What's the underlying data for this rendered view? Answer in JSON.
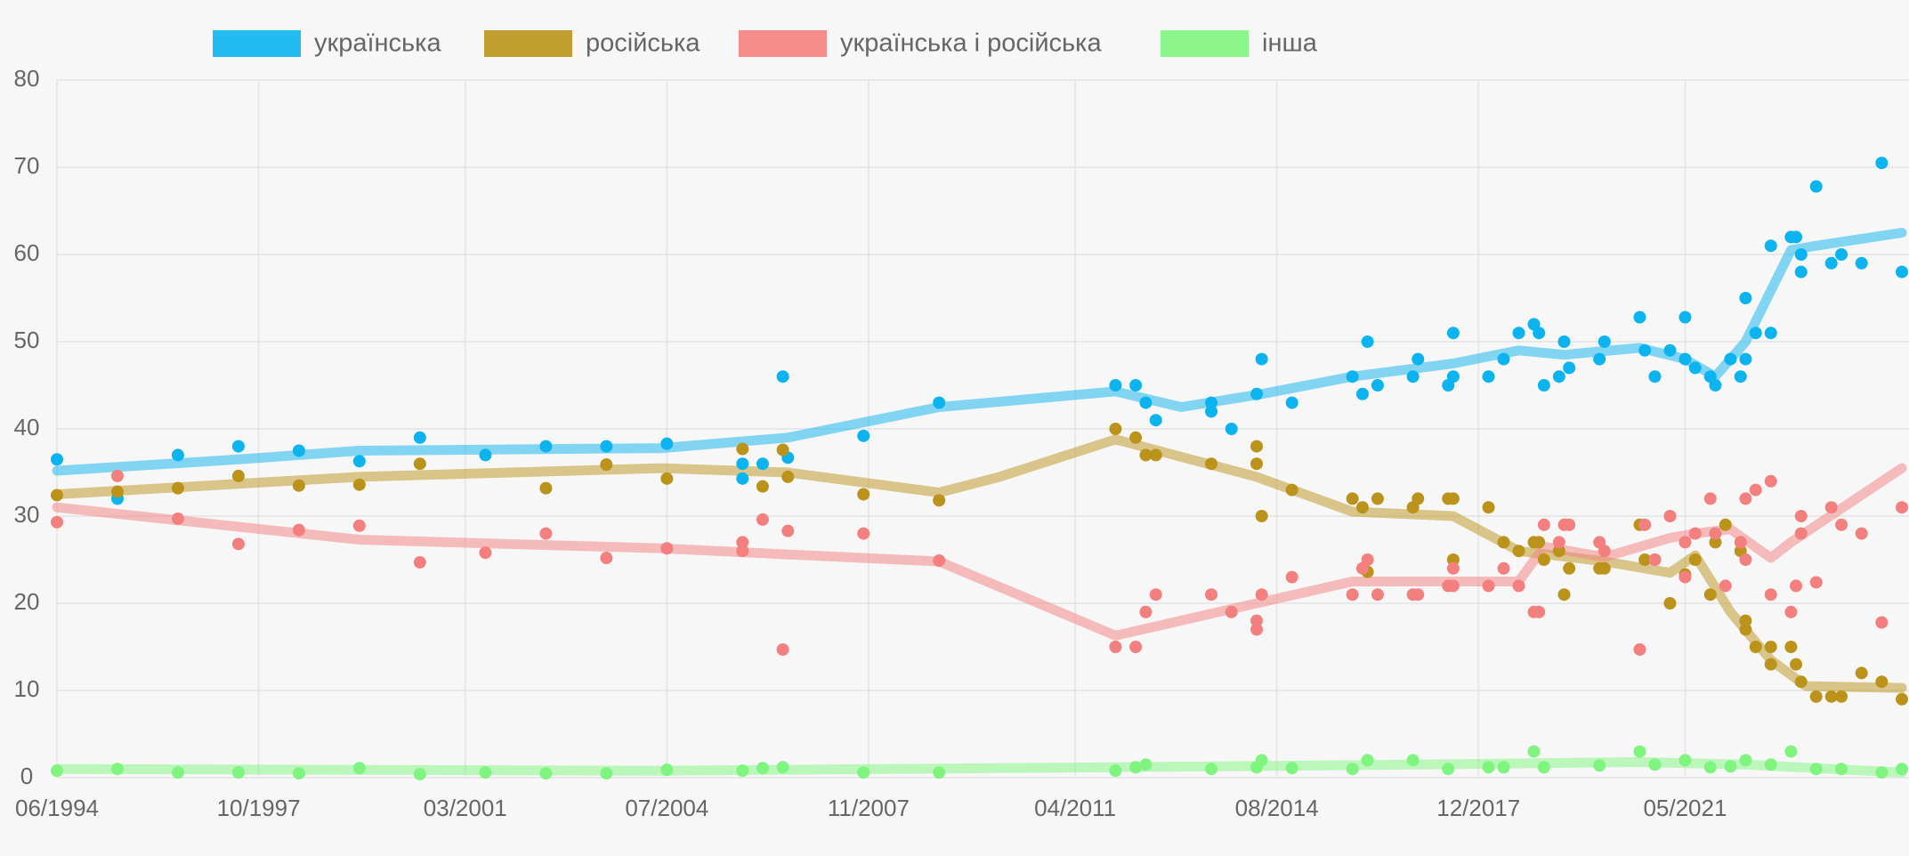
{
  "chart_data": {
    "type": "scatter",
    "xlim": [
      "06/1994",
      "12/2024"
    ],
    "xticks": [
      "06/1994",
      "10/1997",
      "03/2001",
      "07/2004",
      "11/2007",
      "04/2011",
      "08/2014",
      "12/2017",
      "05/2021"
    ],
    "ylim": [
      0,
      80
    ],
    "yticks": [
      0,
      10,
      20,
      30,
      40,
      50,
      60,
      70,
      80
    ],
    "grid": true,
    "series": [
      {
        "name": "українська",
        "color": "#0bb4ef",
        "x": [
          "06/1994",
          "06/1995",
          "06/1996",
          "06/1997",
          "06/1998",
          "06/1999",
          "06/2000",
          "07/2001",
          "07/2002",
          "07/2003",
          "07/2004",
          "10/2005",
          "10/2005",
          "02/2006",
          "06/2006",
          "07/2006",
          "10/2007",
          "01/2009",
          "12/2011",
          "04/2012",
          "06/2012",
          "08/2012",
          "07/2013",
          "07/2013",
          "11/2013",
          "04/2014",
          "05/2014",
          "11/2014",
          "11/2015",
          "01/2016",
          "02/2016",
          "04/2016",
          "11/2016",
          "12/2016",
          "06/2017",
          "07/2017",
          "07/2017",
          "02/2018",
          "05/2018",
          "08/2018",
          "11/2018",
          "12/2018",
          "01/2019",
          "04/2019",
          "05/2019",
          "06/2019",
          "12/2019",
          "01/2020",
          "08/2020",
          "09/2020",
          "11/2020",
          "02/2021",
          "05/2021",
          "05/2021",
          "07/2021",
          "10/2021",
          "11/2021",
          "02/2022",
          "04/2022",
          "05/2022",
          "05/2022",
          "07/2022",
          "10/2022",
          "10/2022",
          "02/2023",
          "03/2023",
          "04/2023",
          "04/2023",
          "07/2023",
          "10/2023",
          "12/2023",
          "04/2024",
          "08/2024",
          "12/2024"
        ],
        "values": [
          36.5,
          32,
          37,
          38,
          37.5,
          36.3,
          39,
          37,
          38,
          38,
          38.3,
          36,
          34.3,
          36,
          46,
          36.7,
          39.2,
          43,
          45,
          45,
          43,
          41,
          43,
          42,
          40,
          44,
          48,
          43,
          46,
          44,
          50,
          45,
          46,
          48,
          45,
          46,
          51,
          46,
          48,
          51,
          52,
          51,
          45,
          46,
          50,
          47,
          48,
          50,
          52.8,
          49,
          46,
          49,
          52.8,
          48,
          47,
          46,
          45,
          48,
          46,
          55,
          48,
          51,
          51,
          61,
          62,
          62,
          60,
          58,
          67.8,
          59,
          60,
          59,
          70.5,
          58
        ],
        "trend": {
          "x": [
            "06/1994",
            "06/1997",
            "06/1999",
            "06/2004",
            "07/2006",
            "01/2009",
            "12/2011",
            "01/2013",
            "05/2014",
            "11/2015",
            "07/2017",
            "08/2018",
            "05/2019",
            "08/2020",
            "05/2021",
            "11/2021",
            "05/2022",
            "02/2023",
            "07/2023",
            "12/2024"
          ],
          "values": [
            35.2,
            36.5,
            37.5,
            37.8,
            39,
            42.5,
            44.3,
            42.5,
            44,
            46,
            47.5,
            49,
            48.5,
            49.3,
            48,
            46,
            50,
            60.5,
            61,
            62.5
          ]
        }
      },
      {
        "name": "російська",
        "color": "#bb931b",
        "x": [
          "06/1994",
          "06/1995",
          "06/1996",
          "06/1997",
          "06/1998",
          "06/1999",
          "06/2000",
          "07/2002",
          "07/2003",
          "07/2004",
          "10/2005",
          "02/2006",
          "06/2006",
          "07/2006",
          "10/2007",
          "01/2009",
          "12/2011",
          "04/2012",
          "06/2012",
          "08/2012",
          "07/2013",
          "04/2014",
          "04/2014",
          "05/2014",
          "11/2014",
          "11/2015",
          "01/2016",
          "02/2016",
          "04/2016",
          "11/2016",
          "12/2016",
          "06/2017",
          "07/2017",
          "07/2017",
          "02/2018",
          "05/2018",
          "08/2018",
          "11/2018",
          "12/2018",
          "01/2019",
          "04/2019",
          "05/2019",
          "06/2019",
          "12/2019",
          "01/2020",
          "08/2020",
          "09/2020",
          "11/2020",
          "02/2021",
          "05/2021",
          "07/2021",
          "10/2021",
          "11/2021",
          "01/2022",
          "04/2022",
          "05/2022",
          "05/2022",
          "07/2022",
          "10/2022",
          "10/2022",
          "02/2023",
          "03/2023",
          "04/2023",
          "07/2023",
          "10/2023",
          "12/2023",
          "04/2024",
          "08/2024",
          "12/2024"
        ],
        "values": [
          32.4,
          32.8,
          33.2,
          34.6,
          33.5,
          33.6,
          36,
          33.2,
          35.9,
          34.3,
          37.7,
          33.4,
          37.6,
          34.5,
          32.5,
          31.8,
          40,
          39,
          37,
          37,
          36,
          38,
          36,
          30,
          33,
          32,
          31,
          23.6,
          32,
          31,
          32,
          32,
          32,
          25,
          31,
          27,
          26,
          27,
          27,
          25,
          26,
          21,
          24,
          24,
          24,
          29,
          25,
          25,
          20,
          23.3,
          25,
          21,
          27,
          29,
          26,
          18,
          17,
          15,
          13,
          15,
          15,
          13,
          11,
          9.3,
          9.3,
          9.3,
          12,
          11,
          9
        ],
        "trend": {
          "x": [
            "06/1994",
            "06/1999",
            "06/2004",
            "07/2006",
            "01/2009",
            "01/2010",
            "12/2011",
            "04/2014",
            "11/2015",
            "07/2017",
            "08/2018",
            "01/2020",
            "09/2020",
            "02/2021",
            "07/2021",
            "02/2022",
            "10/2022",
            "05/2023",
            "12/2024"
          ],
          "values": [
            32.5,
            34.5,
            35.5,
            35,
            32.7,
            34.5,
            38.8,
            34.5,
            30.5,
            30,
            26,
            24.8,
            24,
            23.5,
            25.5,
            19,
            13.5,
            10.5,
            10.3
          ]
        }
      },
      {
        "name": "українська і російська",
        "color": "#f47f7f",
        "x": [
          "06/1994",
          "06/1995",
          "06/1996",
          "06/1997",
          "06/1998",
          "06/1999",
          "06/2000",
          "07/2001",
          "07/2002",
          "07/2003",
          "07/2004",
          "10/2005",
          "10/2005",
          "02/2006",
          "06/2006",
          "07/2006",
          "10/2007",
          "01/2009",
          "12/2011",
          "04/2012",
          "06/2012",
          "08/2012",
          "07/2013",
          "11/2013",
          "04/2014",
          "04/2014",
          "05/2014",
          "11/2014",
          "11/2015",
          "01/2016",
          "02/2016",
          "04/2016",
          "11/2016",
          "12/2016",
          "06/2017",
          "07/2017",
          "07/2017",
          "02/2018",
          "05/2018",
          "08/2018",
          "11/2018",
          "12/2018",
          "01/2019",
          "04/2019",
          "05/2019",
          "06/2019",
          "12/2019",
          "01/2020",
          "08/2020",
          "09/2020",
          "11/2020",
          "02/2021",
          "05/2021",
          "05/2021",
          "07/2021",
          "10/2021",
          "11/2021",
          "01/2022",
          "04/2022",
          "05/2022",
          "05/2022",
          "07/2022",
          "10/2022",
          "10/2022",
          "02/2023",
          "03/2023",
          "04/2023",
          "04/2023",
          "07/2023",
          "10/2023",
          "12/2023",
          "04/2024",
          "08/2024",
          "12/2024"
        ],
        "values": [
          29.3,
          34.6,
          29.7,
          26.8,
          28.4,
          28.9,
          24.7,
          25.8,
          28,
          25.2,
          26.3,
          27,
          26,
          29.6,
          14.7,
          28.3,
          28,
          24.9,
          15,
          15,
          19,
          21,
          21,
          19,
          17,
          18,
          21,
          23,
          21,
          24,
          25,
          21,
          21,
          21,
          22,
          24,
          22,
          22,
          24,
          22,
          19,
          19,
          29,
          27,
          29,
          29,
          27,
          26,
          14.7,
          29,
          25,
          30,
          23,
          27,
          28,
          32,
          28,
          22,
          27,
          25,
          32,
          33,
          34,
          21,
          19,
          22,
          28,
          30,
          22.4,
          31,
          29,
          28,
          17.8,
          31
        ],
        "trend": {
          "x": [
            "06/1994",
            "06/1999",
            "06/2004",
            "07/2006",
            "01/2009",
            "12/2011",
            "04/2014",
            "11/2015",
            "08/2018",
            "01/2019",
            "01/2020",
            "02/2021",
            "07/2021",
            "02/2022",
            "10/2022",
            "02/2023",
            "12/2024"
          ],
          "values": [
            31,
            27.3,
            26.3,
            25.6,
            24.8,
            16.3,
            20,
            22.5,
            22.5,
            26.5,
            25.3,
            27.5,
            28,
            28.5,
            25.2,
            27,
            35.5
          ]
        }
      },
      {
        "name": "інша",
        "color": "#7ff57f",
        "x": [
          "06/1994",
          "06/1995",
          "06/1996",
          "06/1997",
          "06/1998",
          "06/1999",
          "06/2000",
          "07/2001",
          "07/2002",
          "07/2003",
          "07/2004",
          "10/2005",
          "02/2006",
          "06/2006",
          "10/2007",
          "01/2009",
          "12/2011",
          "04/2012",
          "06/2012",
          "07/2013",
          "04/2014",
          "05/2014",
          "11/2014",
          "11/2015",
          "02/2016",
          "11/2016",
          "06/2017",
          "02/2018",
          "05/2018",
          "11/2018",
          "01/2019",
          "12/2019",
          "08/2020",
          "11/2020",
          "05/2021",
          "10/2021",
          "02/2022",
          "05/2022",
          "10/2022",
          "02/2023",
          "07/2023",
          "12/2023",
          "08/2024",
          "12/2024"
        ],
        "values": [
          0.8,
          1,
          0.6,
          0.6,
          0.5,
          1.1,
          0.4,
          0.6,
          0.5,
          0.5,
          0.9,
          0.8,
          1.1,
          1.2,
          0.6,
          0.6,
          0.8,
          1.2,
          1.5,
          1,
          1.2,
          2,
          1.1,
          1,
          2,
          2,
          1,
          1.2,
          1.2,
          3,
          1.2,
          1.4,
          3,
          1.5,
          2,
          1.2,
          1.3,
          2,
          1.5,
          3,
          1,
          1,
          0.6,
          1
        ],
        "trend": {
          "x": [
            "06/1994",
            "06/2004",
            "12/2011",
            "11/2016",
            "08/2020",
            "05/2022",
            "12/2024"
          ],
          "values": [
            1,
            0.8,
            1.2,
            1.5,
            1.8,
            1.5,
            0.6
          ]
        }
      }
    ]
  }
}
